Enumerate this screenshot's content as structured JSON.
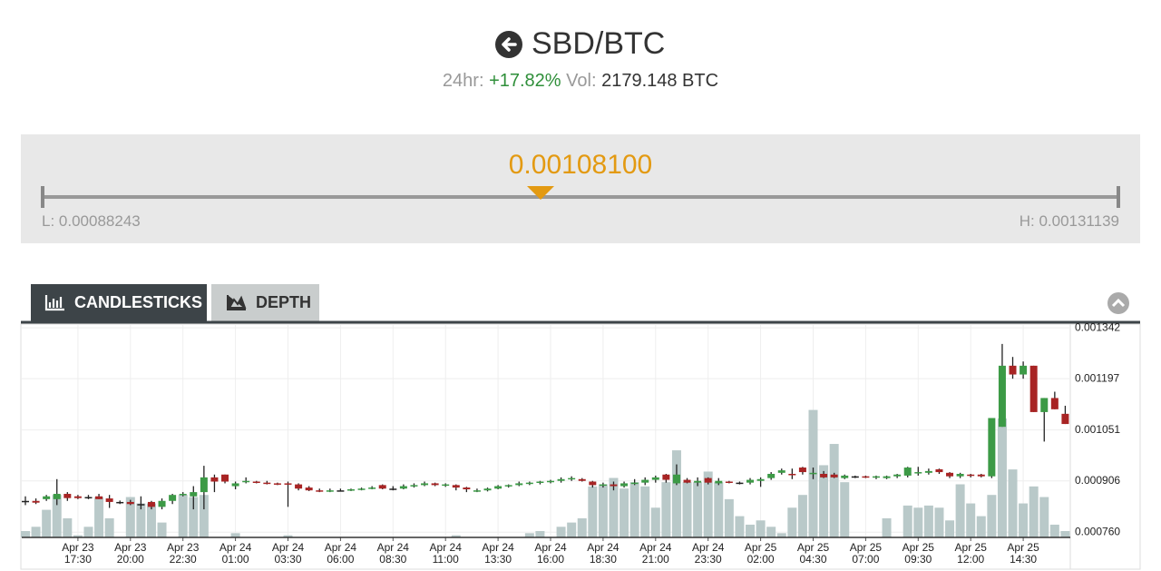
{
  "header": {
    "title": "SBD/BTC",
    "change_label": "24hr:",
    "change": "+17.82%",
    "volume_label": "Vol:",
    "volume": "2179.148 BTC"
  },
  "price_bar": {
    "price": {
      "value": 0.001081,
      "label": "0.00108100"
    },
    "low_label": "L:",
    "low": 0.00088243,
    "high_label": "H:",
    "high": 0.00131139
  },
  "tabs": [
    "CANDLESTICKS",
    "DEPTH"
  ],
  "chart_data": {
    "type": "candlestick",
    "categories": [
      null,
      null,
      null,
      null,
      null,
      {
        "date": "Apr 23",
        "time": "17:30"
      },
      null,
      null,
      null,
      null,
      {
        "date": "Apr 23",
        "time": "20:00"
      },
      null,
      null,
      null,
      null,
      {
        "date": "Apr 23",
        "time": "22:30"
      },
      null,
      null,
      null,
      null,
      {
        "date": "Apr 24",
        "time": "01:00"
      },
      null,
      null,
      null,
      null,
      {
        "date": "Apr 24",
        "time": "03:30"
      },
      null,
      null,
      null,
      null,
      {
        "date": "Apr 24",
        "time": "06:00"
      },
      null,
      null,
      null,
      null,
      {
        "date": "Apr 24",
        "time": "08:30"
      },
      null,
      null,
      null,
      null,
      {
        "date": "Apr 24",
        "time": "11:00"
      },
      null,
      null,
      null,
      null,
      {
        "date": "Apr 24",
        "time": "13:30"
      },
      null,
      null,
      null,
      null,
      {
        "date": "Apr 24",
        "time": "16:00"
      },
      null,
      null,
      null,
      null,
      {
        "date": "Apr 24",
        "time": "18:30"
      },
      null,
      null,
      null,
      null,
      {
        "date": "Apr 24",
        "time": "21:00"
      },
      null,
      null,
      null,
      null,
      {
        "date": "Apr 24",
        "time": "23:30"
      },
      null,
      null,
      null,
      null,
      {
        "date": "Apr 25",
        "time": "02:00"
      },
      null,
      null,
      null,
      null,
      {
        "date": "Apr 25",
        "time": "04:30"
      },
      null,
      null,
      null,
      null,
      {
        "date": "Apr 25",
        "time": "07:00"
      },
      null,
      null,
      null,
      null,
      {
        "date": "Apr 25",
        "time": "09:30"
      },
      null,
      null,
      null,
      null,
      {
        "date": "Apr 25",
        "time": "12:00"
      },
      null,
      null,
      null,
      null,
      {
        "date": "Apr 25",
        "time": "14:30"
      },
      null,
      null,
      null,
      null
    ],
    "open": [
      0.000849,
      0.000849,
      0.000854,
      0.000854,
      0.000869,
      0.000862,
      0.00086,
      0.000862,
      0.000856,
      0.000846,
      0.000846,
      0.00084,
      0.000846,
      0.000832,
      0.000849,
      0.000866,
      0.000862,
      0.000874,
      0.000916,
      0.000924,
      0.000891,
      0.000904,
      0.000904,
      0.000901,
      0.000899,
      0.000899,
      0.000896,
      0.000887,
      0.000879,
      0.000876,
      0.000879,
      0.000879,
      0.000882,
      0.000884,
      0.000894,
      0.000884,
      0.000884,
      0.000891,
      0.000894,
      0.000899,
      0.000894,
      0.000894,
      0.000887,
      0.000877,
      0.000879,
      0.000884,
      0.000891,
      0.000894,
      0.000899,
      0.000901,
      0.000904,
      0.000906,
      0.000911,
      0.000911,
      0.000904,
      0.000894,
      0.000896,
      0.000891,
      0.000899,
      0.000901,
      0.000909,
      0.000924,
      0.000899,
      0.000909,
      0.000901,
      0.000914,
      0.000899,
      0.000904,
      0.000901,
      0.000901,
      0.000906,
      0.000914,
      0.000929,
      0.000926,
      0.000944,
      0.000926,
      0.000926,
      0.000924,
      0.000914,
      0.000919,
      0.000919,
      0.000916,
      0.000914,
      0.000919,
      0.000921,
      0.000929,
      0.000929,
      0.000939,
      0.000929,
      0.000919,
      0.000924,
      0.000924,
      0.000919,
      0.00106,
      0.001234,
      0.001209,
      0.001234,
      0.001102,
      0.001142,
      0.001097
    ],
    "high": [
      0.000862,
      0.000856,
      0.000866,
      0.000911,
      0.000874,
      0.000866,
      0.000866,
      0.000869,
      0.000866,
      0.00085,
      0.000852,
      0.000862,
      0.000849,
      0.000856,
      0.000869,
      0.000874,
      0.000891,
      0.000949,
      0.000924,
      0.000924,
      0.000904,
      0.000916,
      0.000906,
      0.000906,
      0.000901,
      0.000904,
      0.000899,
      0.000891,
      0.000884,
      0.000884,
      0.000884,
      0.000884,
      0.000887,
      0.000891,
      0.000896,
      0.000891,
      0.000896,
      0.000899,
      0.000904,
      0.000901,
      0.000899,
      0.000896,
      0.000889,
      0.000884,
      0.000887,
      0.000894,
      0.000896,
      0.000904,
      0.000904,
      0.000906,
      0.000909,
      0.000916,
      0.000919,
      0.000914,
      0.000906,
      0.000901,
      0.000904,
      0.000904,
      0.000911,
      0.000916,
      0.000921,
      0.000926,
      0.000953,
      0.000914,
      0.000916,
      0.000916,
      0.000914,
      0.000906,
      0.000904,
      0.000914,
      0.000916,
      0.000931,
      0.000941,
      0.000941,
      0.000946,
      0.000944,
      0.000934,
      0.000929,
      0.000924,
      0.000921,
      0.000921,
      0.000921,
      0.000921,
      0.000926,
      0.000946,
      0.000946,
      0.000941,
      0.000941,
      0.000931,
      0.000929,
      0.000926,
      0.000926,
      0.001085,
      0.001296,
      0.001259,
      0.001246,
      0.001234,
      0.001142,
      0.00116,
      0.00112
    ],
    "low": [
      0.000837,
      0.00084,
      0.000849,
      0.000837,
      0.000849,
      0.000854,
      0.000854,
      0.000854,
      0.000829,
      0.00084,
      0.000837,
      0.000825,
      0.000825,
      0.000825,
      0.00084,
      0.000862,
      0.000825,
      0.000825,
      0.000874,
      0.000899,
      0.000882,
      0.000899,
      0.000899,
      0.000896,
      0.000894,
      0.000832,
      0.000879,
      0.000877,
      0.000874,
      0.000874,
      0.000876,
      0.000877,
      0.000879,
      0.000882,
      0.000882,
      0.000879,
      0.000882,
      0.000887,
      0.000891,
      0.000891,
      0.000889,
      0.000879,
      0.000874,
      0.000874,
      0.000876,
      0.000882,
      0.000887,
      0.000891,
      0.000894,
      0.000896,
      0.000899,
      0.000901,
      0.000906,
      0.000904,
      0.000887,
      0.000887,
      0.000879,
      0.000887,
      0.000894,
      0.000894,
      0.000901,
      0.000901,
      0.000894,
      0.000899,
      0.000891,
      0.000896,
      0.000894,
      0.000899,
      0.000896,
      0.000896,
      0.000889,
      0.000909,
      0.000924,
      0.000911,
      0.000924,
      0.000911,
      0.000914,
      0.000914,
      0.000911,
      0.000914,
      0.000914,
      0.000911,
      0.000911,
      0.000914,
      0.000916,
      0.000921,
      0.000924,
      0.000926,
      0.000914,
      0.000914,
      0.000916,
      0.000916,
      0.000914,
      0.00106,
      0.001197,
      0.001197,
      0.001102,
      0.001018,
      0.00111,
      0.001068
    ],
    "close": [
      0.000849,
      0.000844,
      0.000862,
      0.000869,
      0.000857,
      0.000857,
      0.00086,
      0.000854,
      0.000846,
      0.000846,
      0.00084,
      0.00084,
      0.000832,
      0.000849,
      0.000866,
      0.000869,
      0.000874,
      0.000916,
      0.000904,
      0.000904,
      0.000899,
      0.000906,
      0.000901,
      0.000899,
      0.000896,
      0.000896,
      0.000884,
      0.000879,
      0.000876,
      0.000879,
      0.000879,
      0.000882,
      0.000884,
      0.000887,
      0.000884,
      0.000884,
      0.000891,
      0.000894,
      0.000899,
      0.000894,
      0.000896,
      0.000887,
      0.000882,
      0.000879,
      0.000884,
      0.000891,
      0.000894,
      0.000899,
      0.000901,
      0.000904,
      0.000906,
      0.000911,
      0.000914,
      0.000906,
      0.000894,
      0.000896,
      0.000891,
      0.000899,
      0.000901,
      0.000909,
      0.000916,
      0.000909,
      0.000924,
      0.000901,
      0.000906,
      0.000901,
      0.000906,
      0.000901,
      0.000901,
      0.000909,
      0.000911,
      0.000926,
      0.000936,
      0.000924,
      0.000931,
      0.000929,
      0.000916,
      0.000916,
      0.000921,
      0.000919,
      0.000916,
      0.000919,
      0.000919,
      0.000924,
      0.000944,
      0.000931,
      0.000934,
      0.000931,
      0.000919,
      0.000926,
      0.000921,
      0.000919,
      0.001085,
      0.001234,
      0.001209,
      0.001234,
      0.001102,
      0.001142,
      0.00111,
      0.001068
    ],
    "volume": [
      3,
      5,
      13,
      20,
      9,
      1,
      5,
      19,
      9,
      0,
      19,
      16,
      16,
      7,
      0,
      20,
      19,
      20,
      0,
      0,
      2,
      0,
      0,
      0,
      0,
      1,
      0,
      0,
      0,
      0,
      0,
      0,
      0,
      0,
      0,
      0,
      0,
      0,
      0,
      0,
      0,
      1,
      0,
      0,
      0,
      0,
      0,
      0,
      2,
      3,
      0,
      5,
      7,
      9,
      24,
      25,
      28,
      23,
      26,
      24,
      14,
      26,
      41,
      26,
      26,
      31,
      26,
      18,
      10,
      6,
      8,
      5,
      2,
      14,
      20,
      60,
      34,
      44,
      26,
      0,
      0,
      0,
      9,
      0,
      15,
      14,
      15,
      14,
      8,
      25,
      16,
      10,
      20,
      56,
      32,
      16,
      24,
      19,
      6,
      3
    ],
    "up_color": "#3c9a46",
    "down_color": "#a82424",
    "volume_color": "#b9c9c9",
    "ylim": [
      0.000745,
      0.00135
    ],
    "yticks": [
      {
        "value": 0.00076,
        "label": "0.000760"
      },
      0.000906,
      0.001051,
      0.001197,
      0.001342
    ],
    "grid": true
  }
}
